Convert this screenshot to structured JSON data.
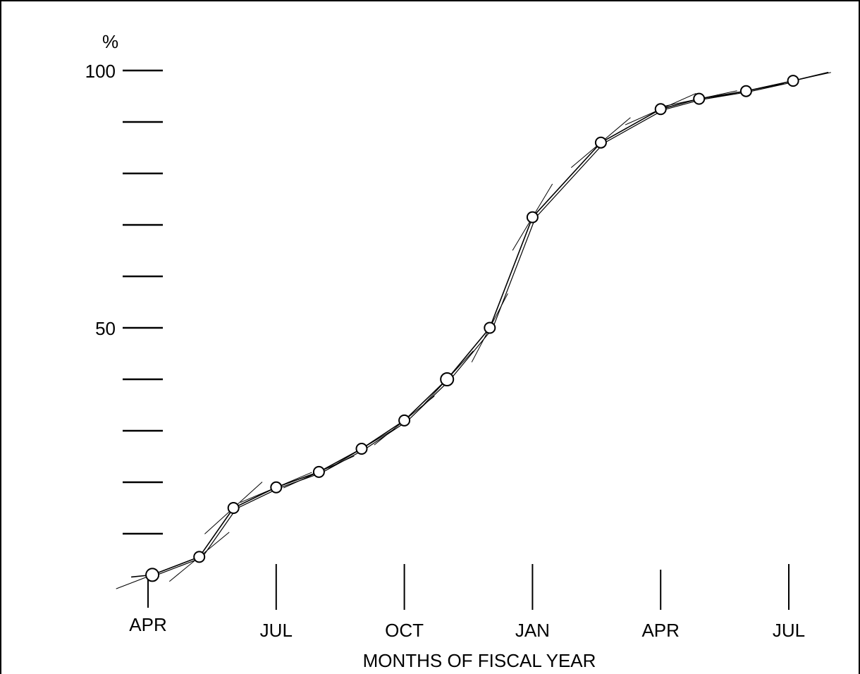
{
  "chart_data": {
    "type": "line",
    "title": "",
    "xlabel": "MONTHS OF FISCAL YEAR",
    "ylabel": "%",
    "ylim": [
      0,
      100
    ],
    "y_ticks": [
      0,
      10,
      20,
      30,
      40,
      50,
      60,
      70,
      80,
      90,
      100
    ],
    "y_tick_labels": [
      {
        "value": 100,
        "label": "100"
      },
      {
        "value": 50,
        "label": "50"
      }
    ],
    "x_ticks": [
      {
        "month": 0,
        "label": "APR"
      },
      {
        "month": 3,
        "label": "JUL"
      },
      {
        "month": 6,
        "label": "OCT"
      },
      {
        "month": 9,
        "label": "JAN"
      },
      {
        "month": 12,
        "label": "APR"
      },
      {
        "month": 15,
        "label": "JUL"
      }
    ],
    "grid": false,
    "legend": "none",
    "series": [
      {
        "x": [
          0.1,
          1.2,
          2.0,
          3.0,
          4.0,
          5.0,
          6.0,
          7.0,
          8.0,
          9.0,
          10.6,
          12.0,
          12.9,
          14.0,
          15.1
        ],
        "y": [
          2,
          5.5,
          15,
          19,
          22,
          26.5,
          32,
          40,
          50,
          71.5,
          86,
          92.5,
          94.5,
          96,
          98
        ],
        "color": "#000000"
      }
    ]
  }
}
